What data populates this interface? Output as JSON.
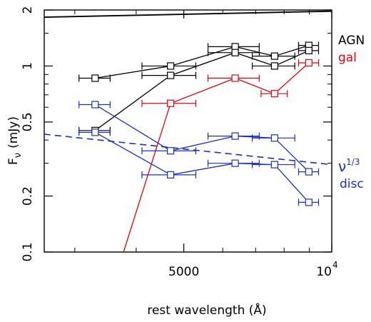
{
  "chart_data": {
    "type": "line",
    "title": "",
    "xlabel": "rest wavelength (Å)",
    "ylabel_base": "F",
    "ylabel_sub": "ν",
    "ylabel_unit": "(mJy)",
    "x_scale": "log",
    "y_scale": "log",
    "xlim": [
      2600,
      10000
    ],
    "ylim": [
      0.1,
      2.0
    ],
    "x_ticks": [
      {
        "value": 5000,
        "label": "5000"
      },
      {
        "value": 10000,
        "label": "10",
        "sup": "4"
      }
    ],
    "y_ticks": [
      {
        "value": 0.1,
        "label": "0.1"
      },
      {
        "value": 0.2,
        "label": "0.2"
      },
      {
        "value": 0.5,
        "label": "0.5"
      },
      {
        "value": 1,
        "label": "1"
      },
      {
        "value": 2,
        "label": "2"
      }
    ],
    "x_minor_ticks": [
      3000,
      4000,
      6000,
      7000,
      8000,
      9000
    ],
    "y_minor_ticks": [
      0.3,
      0.4,
      0.6,
      0.7,
      0.8,
      0.9,
      1.5
    ],
    "series": [
      {
        "name": "AGN",
        "color": "#000000",
        "x": [
          3300,
          4700,
          6360,
          7650,
          8980
        ],
        "y": [
          0.86,
          1.0,
          1.27,
          1.13,
          1.29
        ],
        "xerr_lo": [
          240,
          590,
          760,
          760,
          420
        ],
        "xerr_hi": [
          240,
          590,
          760,
          760,
          420
        ]
      },
      {
        "name": "",
        "color": "#000000",
        "x": [
          3300,
          4700,
          6360,
          7650,
          8980
        ],
        "y": [
          0.45,
          0.89,
          1.18,
          1.0,
          1.21
        ],
        "xerr_lo": [
          240,
          590,
          760,
          760,
          420
        ],
        "xerr_hi": [
          240,
          590,
          760,
          760,
          420
        ]
      },
      {
        "name": "gal",
        "color": "#e8000b",
        "x": [
          3770,
          4700,
          6360,
          7650,
          8980
        ],
        "y": [
          0.1,
          0.63,
          0.86,
          0.71,
          1.04
        ],
        "xerr_lo": [
          0,
          590,
          760,
          470,
          420
        ],
        "xerr_hi": [
          0,
          590,
          760,
          470,
          420
        ]
      },
      {
        "name": "disc",
        "color": "#1a2dd1",
        "x": [
          3300,
          4700,
          6360,
          7650,
          8980
        ],
        "y": [
          0.62,
          0.35,
          0.42,
          0.41,
          0.27
        ],
        "xerr_lo": [
          240,
          590,
          760,
          760,
          420
        ],
        "xerr_hi": [
          240,
          590,
          760,
          760,
          420
        ]
      },
      {
        "name": "",
        "color": "#1a2dd1",
        "x": [
          3300,
          4700,
          6360,
          7650,
          8980
        ],
        "y": [
          0.44,
          0.26,
          0.3,
          0.295,
          0.185
        ],
        "xerr_lo": [
          240,
          590,
          760,
          760,
          420
        ],
        "xerr_hi": [
          240,
          590,
          760,
          760,
          420
        ]
      }
    ],
    "guide_lines": [
      {
        "name": "ν^1/3",
        "color": "#1a2dd1",
        "style": "dashed",
        "x": [
          2600,
          10000
        ],
        "y": [
          0.43,
          0.295
        ]
      },
      {
        "name": "",
        "color": "#000000",
        "style": "solid",
        "x": [
          2600,
          10000
        ],
        "y": [
          1.83,
          1.97
        ]
      }
    ],
    "legend": [
      {
        "text": "AGN",
        "color": "#000000"
      },
      {
        "text": "gal",
        "color": "#e8000b"
      },
      {
        "text": "ν",
        "sup": "1/3",
        "color": "#1a2dd1"
      },
      {
        "text": "disc",
        "color": "#1a2dd1"
      }
    ],
    "legend_placement": "right",
    "grid": false
  }
}
